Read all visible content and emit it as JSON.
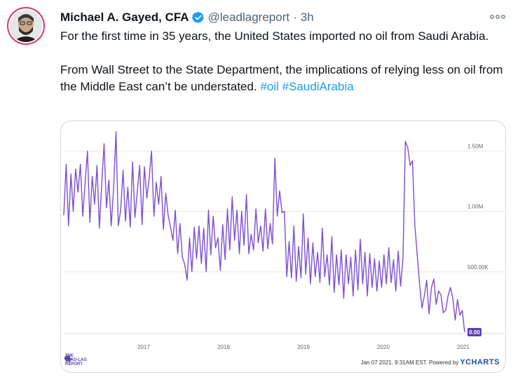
{
  "tweet": {
    "author_name": "Michael A. Gayed, CFA",
    "handle": "@leadlagreport",
    "separator": "·",
    "time": "3h",
    "text_line1": "For the first time in 35 years, the United States imported no oil from Saudi Arabia.",
    "text_line2": "From Wall Street to the State Department, the implications of relying less on oil from the Middle East can’t be understated.",
    "hashtags": [
      "#oil",
      "#SaudiArabia"
    ]
  },
  "colors": {
    "line": "#7b4fd4",
    "hashtag": "#1d9bf0",
    "badge": "#5b3fb0",
    "verified": "#1d9bf0"
  },
  "icons": {
    "verified": "verified-badge-icon",
    "more": "more-horizontal-icon"
  },
  "chart_data": {
    "type": "line",
    "x_ticks": [
      "2017",
      "2018",
      "2019",
      "2020",
      "2021"
    ],
    "y_ticks": [
      "500.00K",
      "1.00M",
      "1.50M"
    ],
    "ylim": [
      0,
      1700000
    ],
    "current_value_label": "0.00",
    "stamp": "Jan 07 2021, 9:31AM EST. Powered by",
    "brand": "YCHARTS",
    "source_logo_text": [
      "THE",
      "LEAD-LAG",
      "REPORT"
    ],
    "series": [
      {
        "values": [
          970000,
          1390000,
          880000,
          1310000,
          1000000,
          1350000,
          1160000,
          1390000,
          960000,
          1240000,
          1500000,
          910000,
          1290000,
          1060000,
          1380000,
          860000,
          1230000,
          1560000,
          1030000,
          1260000,
          880000,
          1190000,
          1660000,
          880000,
          1010000,
          1340000,
          920000,
          1200000,
          870000,
          1410000,
          950000,
          1160000,
          1380000,
          890000,
          1370000,
          1110000,
          1270000,
          1500000,
          960000,
          1240000,
          1060000,
          1290000,
          850000,
          1150000,
          970000,
          870000,
          760000,
          1010000,
          650000,
          900000,
          620000,
          560000,
          430000,
          780000,
          500000,
          870000,
          610000,
          880000,
          570000,
          860000,
          500000,
          1010000,
          640000,
          960000,
          700000,
          780000,
          510000,
          890000,
          600000,
          1020000,
          680000,
          1120000,
          760000,
          1010000,
          650000,
          1000000,
          720000,
          1140000,
          650000,
          810000,
          680000,
          1020000,
          740000,
          880000,
          670000,
          1020000,
          690000,
          900000,
          730000,
          1440000,
          960000,
          1170000,
          990000,
          1000000,
          460000,
          750000,
          450000,
          880000,
          420000,
          710000,
          450000,
          980000,
          480000,
          780000,
          400000,
          740000,
          460000,
          660000,
          410000,
          860000,
          460000,
          640000,
          390000,
          790000,
          330000,
          640000,
          390000,
          680000,
          280000,
          640000,
          400000,
          620000,
          300000,
          680000,
          350000,
          770000,
          400000,
          660000,
          300000,
          650000,
          370000,
          610000,
          340000,
          590000,
          370000,
          640000,
          400000,
          700000,
          410000,
          600000,
          340000,
          670000,
          380000,
          610000,
          1580000,
          1530000,
          1380000,
          1420000,
          890000,
          640000,
          400000,
          200000,
          300000,
          430000,
          150000,
          370000,
          440000,
          230000,
          340000,
          310000,
          160000,
          180000,
          300000,
          370000,
          280000,
          100000,
          270000,
          140000,
          180000,
          0
        ]
      }
    ]
  }
}
